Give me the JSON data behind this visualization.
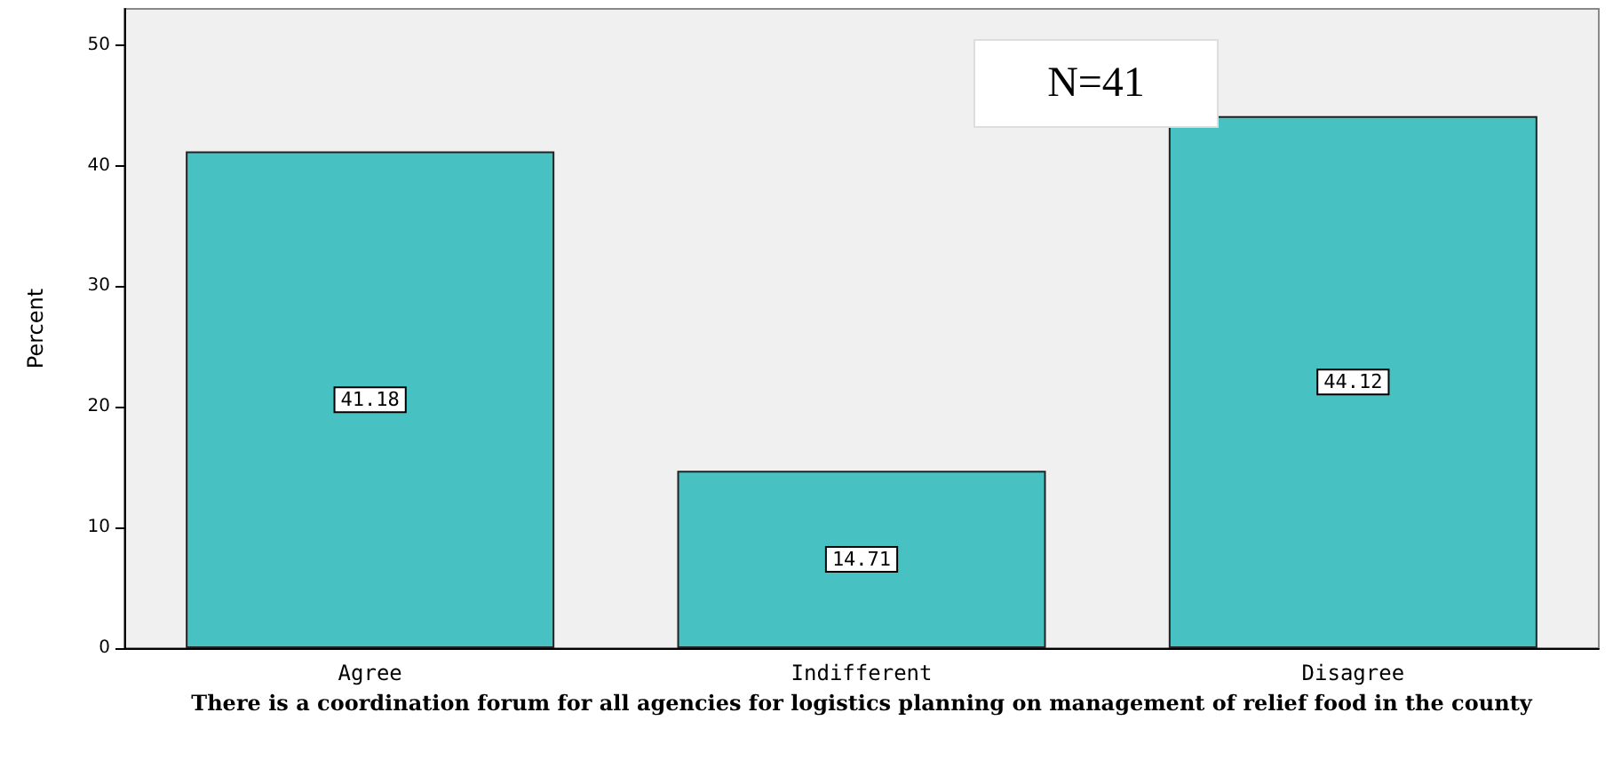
{
  "chart_data": {
    "type": "bar",
    "xlabel": "There is a coordination forum for all agencies for logistics planning on management of relief food in the county",
    "ylabel": "Percent",
    "categories": [
      "Agree",
      "Indifferent",
      "Disagree"
    ],
    "values": [
      41.18,
      14.71,
      44.12
    ],
    "color": "#48c1c3",
    "ylim": [
      0,
      53
    ],
    "yticks": [
      0,
      10,
      20,
      30,
      40,
      50
    ],
    "data_labels": true,
    "annotations": [
      "N=41"
    ]
  }
}
